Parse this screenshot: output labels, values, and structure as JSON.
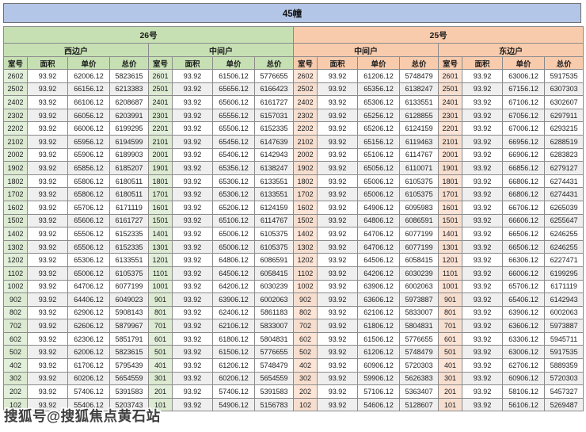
{
  "header": {
    "title": "45幢",
    "buildings": [
      {
        "label": "26号"
      },
      {
        "label": "25号"
      }
    ],
    "unit_types": [
      "西边户",
      "中间户",
      "中间户",
      "东边户"
    ],
    "columns": [
      "室号",
      "面积",
      "单价",
      "总价"
    ]
  },
  "watermark": "搜狐号@搜狐焦点黄石站",
  "colors": {
    "title-bar-bg": "#b4c6e7",
    "green-header": "#c6e0b4",
    "green-tint": "#e2efda",
    "orange-header": "#f8cbad",
    "orange-tint": "#fce4d6",
    "stripe": "#efefef"
  },
  "rows": [
    [
      "2602",
      "93.92",
      "62006.12",
      "5823615",
      "2601",
      "93.92",
      "61506.12",
      "5776655",
      "2602",
      "93.92",
      "61206.12",
      "5748479",
      "2601",
      "93.92",
      "63006.12",
      "5917535"
    ],
    [
      "2502",
      "93.92",
      "66156.12",
      "6213383",
      "2501",
      "93.92",
      "65656.12",
      "6166423",
      "2502",
      "93.92",
      "65356.12",
      "6138247",
      "2501",
      "93.92",
      "67156.12",
      "6307303"
    ],
    [
      "2402",
      "93.92",
      "66106.12",
      "6208687",
      "2401",
      "93.92",
      "65606.12",
      "6161727",
      "2402",
      "93.92",
      "65306.12",
      "6133551",
      "2401",
      "93.92",
      "67106.12",
      "6302607"
    ],
    [
      "2302",
      "93.92",
      "66056.12",
      "6203991",
      "2301",
      "93.92",
      "65556.12",
      "6157031",
      "2302",
      "93.92",
      "65256.12",
      "6128855",
      "2301",
      "93.92",
      "67056.12",
      "6297911"
    ],
    [
      "2202",
      "93.92",
      "66006.12",
      "6199295",
      "2201",
      "93.92",
      "65506.12",
      "6152335",
      "2202",
      "93.92",
      "65206.12",
      "6124159",
      "2201",
      "93.92",
      "67006.12",
      "6293215"
    ],
    [
      "2102",
      "93.92",
      "65956.12",
      "6194599",
      "2101",
      "93.92",
      "65456.12",
      "6147639",
      "2102",
      "93.92",
      "65156.12",
      "6119463",
      "2101",
      "93.92",
      "66956.12",
      "6288519"
    ],
    [
      "2002",
      "93.92",
      "65906.12",
      "6189903",
      "2001",
      "93.92",
      "65406.12",
      "6142943",
      "2002",
      "93.92",
      "65106.12",
      "6114767",
      "2001",
      "93.92",
      "66906.12",
      "6283823"
    ],
    [
      "1902",
      "93.92",
      "65856.12",
      "6185207",
      "1901",
      "93.92",
      "65356.12",
      "6138247",
      "1902",
      "93.92",
      "65056.12",
      "6110071",
      "1901",
      "93.92",
      "66856.12",
      "6279127"
    ],
    [
      "1802",
      "93.92",
      "65806.12",
      "6180511",
      "1801",
      "93.92",
      "65306.12",
      "6133551",
      "1802",
      "93.92",
      "65006.12",
      "6105375",
      "1801",
      "93.92",
      "66806.12",
      "6274431"
    ],
    [
      "1702",
      "93.92",
      "65806.12",
      "6180511",
      "1701",
      "93.92",
      "65306.12",
      "6133551",
      "1702",
      "93.92",
      "65006.12",
      "6105375",
      "1701",
      "93.92",
      "66806.12",
      "6274431"
    ],
    [
      "1602",
      "93.92",
      "65706.12",
      "6171119",
      "1601",
      "93.92",
      "65206.12",
      "6124159",
      "1602",
      "93.92",
      "64906.12",
      "6095983",
      "1601",
      "93.92",
      "66706.12",
      "6265039"
    ],
    [
      "1502",
      "93.92",
      "65606.12",
      "6161727",
      "1501",
      "93.92",
      "65106.12",
      "6114767",
      "1502",
      "93.92",
      "64806.12",
      "6086591",
      "1501",
      "93.92",
      "66606.12",
      "6255647"
    ],
    [
      "1402",
      "93.92",
      "65506.12",
      "6152335",
      "1401",
      "93.92",
      "65006.12",
      "6105375",
      "1402",
      "93.92",
      "64706.12",
      "6077199",
      "1401",
      "93.92",
      "66506.12",
      "6246255"
    ],
    [
      "1302",
      "93.92",
      "65506.12",
      "6152335",
      "1301",
      "93.92",
      "65006.12",
      "6105375",
      "1302",
      "93.92",
      "64706.12",
      "6077199",
      "1301",
      "93.92",
      "66506.12",
      "6246255"
    ],
    [
      "1202",
      "93.92",
      "65306.12",
      "6133551",
      "1201",
      "93.92",
      "64806.12",
      "6086591",
      "1202",
      "93.92",
      "64506.12",
      "6058415",
      "1201",
      "93.92",
      "66306.12",
      "6227471"
    ],
    [
      "1102",
      "93.92",
      "65006.12",
      "6105375",
      "1101",
      "93.92",
      "64506.12",
      "6058415",
      "1102",
      "93.92",
      "64206.12",
      "6030239",
      "1101",
      "93.92",
      "66006.12",
      "6199295"
    ],
    [
      "1002",
      "93.92",
      "64706.12",
      "6077199",
      "1001",
      "93.92",
      "64206.12",
      "6030239",
      "1002",
      "93.92",
      "63906.12",
      "6002063",
      "1001",
      "93.92",
      "65706.12",
      "6171119"
    ],
    [
      "902",
      "93.92",
      "64406.12",
      "6049023",
      "901",
      "93.92",
      "63906.12",
      "6002063",
      "902",
      "93.92",
      "63606.12",
      "5973887",
      "901",
      "93.92",
      "65406.12",
      "6142943"
    ],
    [
      "802",
      "93.92",
      "62906.12",
      "5908143",
      "801",
      "93.92",
      "62406.12",
      "5861183",
      "802",
      "93.92",
      "62106.12",
      "5833007",
      "801",
      "93.92",
      "63906.12",
      "6002063"
    ],
    [
      "702",
      "93.92",
      "62606.12",
      "5879967",
      "701",
      "93.92",
      "62106.12",
      "5833007",
      "702",
      "93.92",
      "61806.12",
      "5804831",
      "701",
      "93.92",
      "63606.12",
      "5973887"
    ],
    [
      "602",
      "93.92",
      "62306.12",
      "5851791",
      "601",
      "93.92",
      "61806.12",
      "5804831",
      "602",
      "93.92",
      "61506.12",
      "5776655",
      "601",
      "93.92",
      "63306.12",
      "5945711"
    ],
    [
      "502",
      "93.92",
      "62006.12",
      "5823615",
      "501",
      "93.92",
      "61506.12",
      "5776655",
      "502",
      "93.92",
      "61206.12",
      "5748479",
      "501",
      "93.92",
      "63006.12",
      "5917535"
    ],
    [
      "402",
      "93.92",
      "61706.12",
      "5795439",
      "401",
      "93.92",
      "61206.12",
      "5748479",
      "402",
      "93.92",
      "60906.12",
      "5720303",
      "401",
      "93.92",
      "62706.12",
      "5889359"
    ],
    [
      "302",
      "93.92",
      "60206.12",
      "5654559",
      "301",
      "93.92",
      "60206.12",
      "5654559",
      "302",
      "93.92",
      "59906.12",
      "5626383",
      "301",
      "93.92",
      "60906.12",
      "5720303"
    ],
    [
      "202",
      "93.92",
      "57406.12",
      "5391583",
      "201",
      "93.92",
      "57406.12",
      "5391583",
      "202",
      "93.92",
      "57106.12",
      "5363407",
      "201",
      "93.92",
      "58106.12",
      "5457327"
    ],
    [
      "102",
      "93.92",
      "55406.12",
      "5203743",
      "101",
      "93.92",
      "54906.12",
      "5156783",
      "102",
      "93.92",
      "54606.12",
      "5128607",
      "101",
      "93.92",
      "56106.12",
      "5269487"
    ]
  ]
}
